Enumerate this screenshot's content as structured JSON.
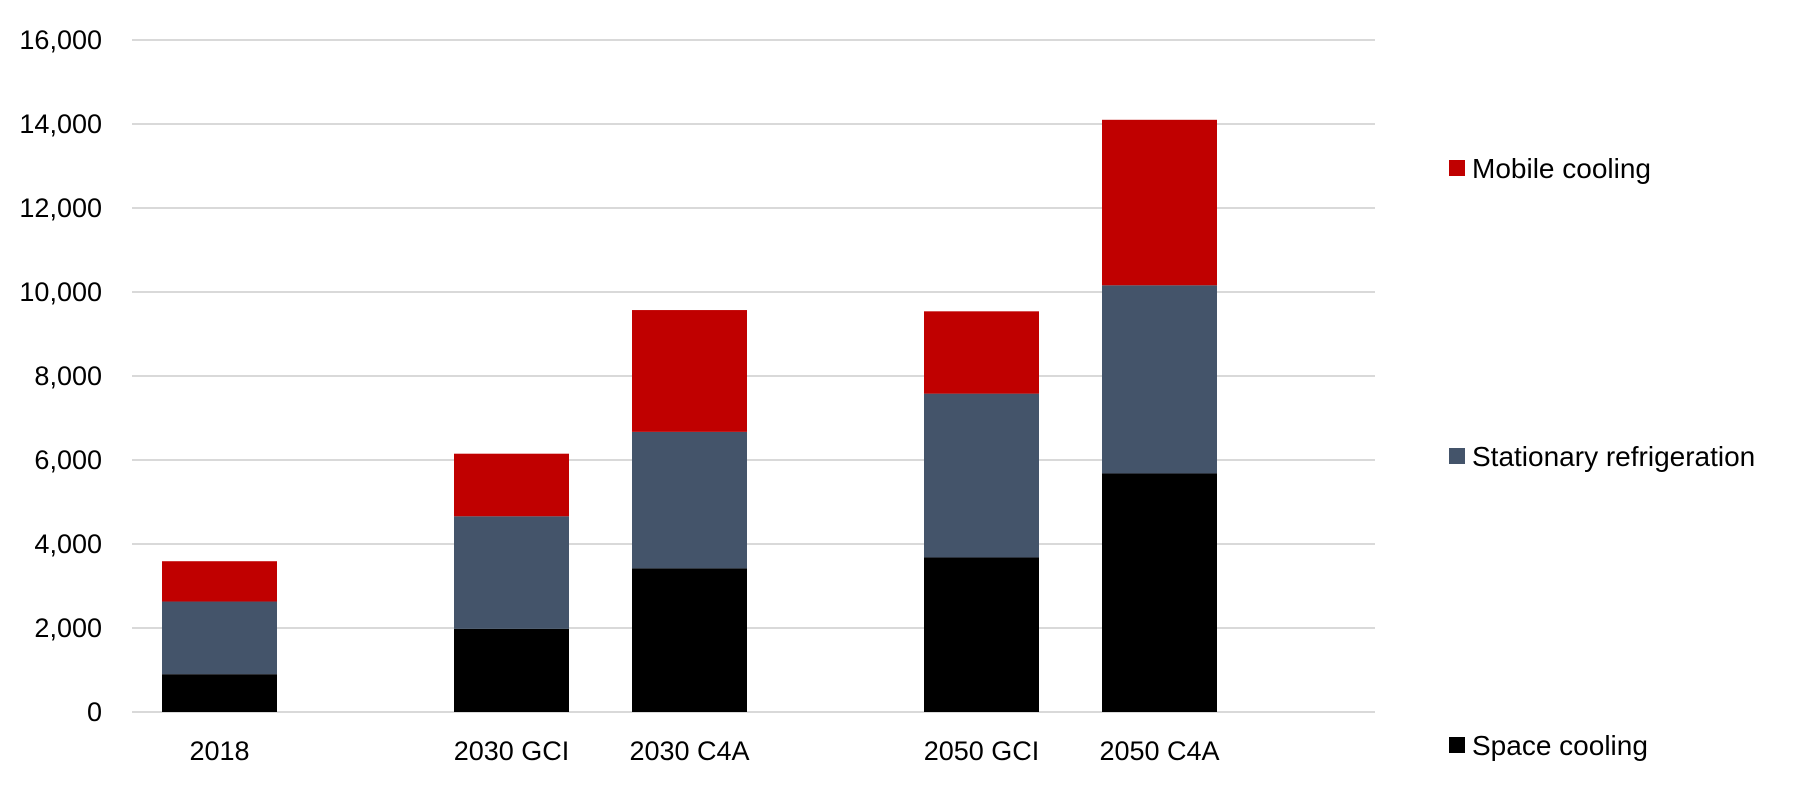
{
  "chart_data": {
    "type": "bar",
    "stacked": true,
    "title": "",
    "xlabel": "",
    "ylabel": "",
    "categories": [
      "2018",
      "2030 GCI",
      "2030 C4A",
      "2050 GCI",
      "2050 C4A"
    ],
    "groups": [
      [
        "2018"
      ],
      [
        "2030 GCI",
        "2030 C4A"
      ],
      [
        "2050 GCI",
        "2050 C4A"
      ]
    ],
    "series": [
      {
        "name": "Space cooling",
        "color": "#000000",
        "values": [
          900,
          1980,
          3420,
          3680,
          5680
        ]
      },
      {
        "name": "Stationary refrigeration",
        "color": "#44546a",
        "values": [
          1730,
          2680,
          3250,
          3900,
          4480
        ]
      },
      {
        "name": "Mobile cooling",
        "color": "#c00000",
        "values": [
          960,
          1490,
          2900,
          1960,
          3940
        ]
      }
    ],
    "ylim": [
      0,
      16000
    ],
    "yticks": [
      "0",
      "2,000",
      "4,000",
      "6,000",
      "8,000",
      "10,000",
      "12,000",
      "14,000",
      "16,000"
    ],
    "grid": true,
    "legend_position": "right",
    "legend_order": [
      "Mobile cooling",
      "Stationary refrigeration",
      "Space cooling"
    ]
  }
}
